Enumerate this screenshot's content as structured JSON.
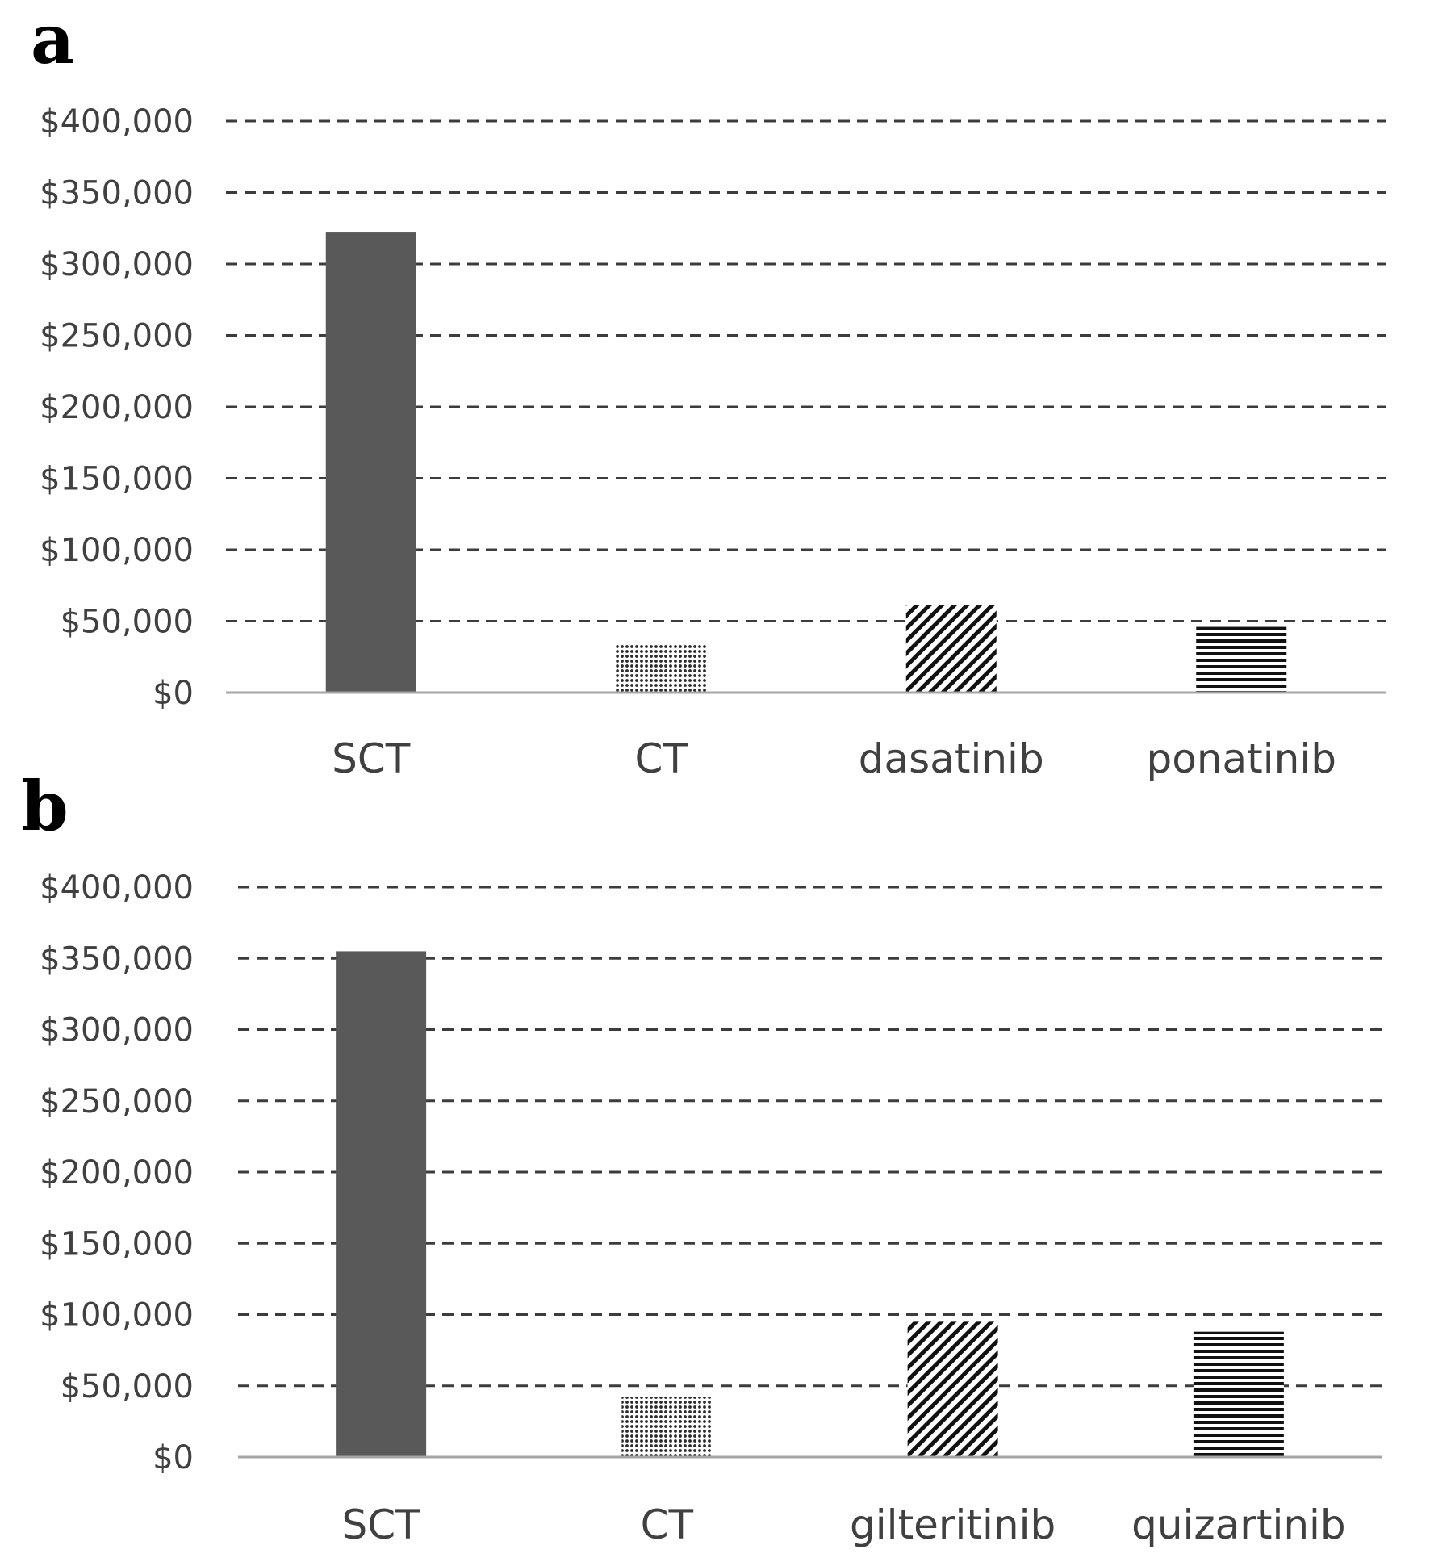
{
  "colors": {
    "solid_bar": "#595959",
    "pattern_fg": "#111111",
    "dot_pattern_fg": "#2a2a2a",
    "grid": "#3c3c3c",
    "axis": "#a6a6a6",
    "tick_text": "#404040"
  },
  "chart_data": [
    {
      "type": "bar",
      "panel_label": "a",
      "title": "",
      "xlabel": "",
      "ylabel": "",
      "categories": [
        "SCT",
        "CT",
        "dasatinib",
        "ponatinib"
      ],
      "values": [
        322000,
        35000,
        61000,
        46000
      ],
      "fill_patterns": [
        "solid",
        "dots",
        "diagonal",
        "horizontal"
      ],
      "ylim": [
        0,
        400000
      ],
      "yticks": [
        0,
        50000,
        100000,
        150000,
        200000,
        250000,
        300000,
        350000,
        400000
      ],
      "ytick_labels": [
        "$0",
        "$50,000",
        "$100,000",
        "$150,000",
        "$200,000",
        "$250,000",
        "$300,000",
        "$350,000",
        "$400,000"
      ],
      "grid": true,
      "grid_style": "dashed",
      "legend": "none"
    },
    {
      "type": "bar",
      "panel_label": "b",
      "title": "",
      "xlabel": "",
      "ylabel": "",
      "categories": [
        "SCT",
        "CT",
        "gilteritinib",
        "quizartinib"
      ],
      "values": [
        355000,
        42000,
        95000,
        88000
      ],
      "fill_patterns": [
        "solid",
        "dots",
        "diagonal",
        "horizontal"
      ],
      "ylim": [
        0,
        400000
      ],
      "yticks": [
        0,
        50000,
        100000,
        150000,
        200000,
        250000,
        300000,
        350000,
        400000
      ],
      "ytick_labels": [
        "$0",
        "$50,000",
        "$100,000",
        "$150,000",
        "$200,000",
        "$250,000",
        "$300,000",
        "$350,000",
        "$400,000"
      ],
      "grid": true,
      "grid_style": "dashed",
      "legend": "none"
    }
  ]
}
